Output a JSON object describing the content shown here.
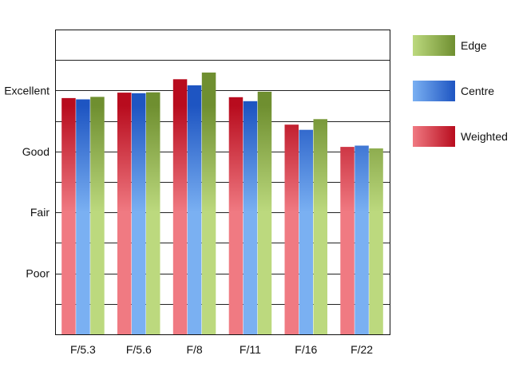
{
  "chart_data": {
    "type": "bar",
    "title": "",
    "xlabel": "",
    "ylabel": "",
    "categories": [
      "F/5.3",
      "F/5.6",
      "F/8",
      "F/11",
      "F/16",
      "F/22"
    ],
    "series": [
      {
        "name": "Weighted",
        "values": [
          7.75,
          7.93,
          8.37,
          7.78,
          6.88,
          6.15
        ],
        "color_light": "#f07a82",
        "color_dark": "#b80c1e"
      },
      {
        "name": "Centre",
        "values": [
          7.71,
          7.91,
          8.17,
          7.65,
          6.71,
          6.19
        ],
        "color_light": "#7ab0f2",
        "color_dark": "#1e55c2"
      },
      {
        "name": "Edge",
        "values": [
          7.79,
          7.94,
          8.59,
          7.96,
          7.06,
          6.1
        ],
        "color_light": "#bcd97e",
        "color_dark": "#6f8f30"
      }
    ],
    "yticks": [
      {
        "value": 2,
        "label": "Poor"
      },
      {
        "value": 4,
        "label": "Fair"
      },
      {
        "value": 6,
        "label": "Good"
      },
      {
        "value": 8,
        "label": "Excellent"
      }
    ],
    "ylim": [
      0,
      10
    ],
    "grid": true,
    "legend_position": "right",
    "legend_order": [
      "Edge",
      "Centre",
      "Weighted"
    ]
  }
}
